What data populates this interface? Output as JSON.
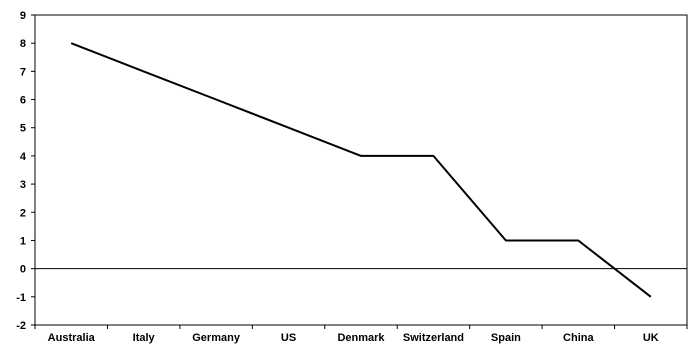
{
  "chart_data": {
    "type": "line",
    "categories": [
      "Australia",
      "Italy",
      "Germany",
      "US",
      "Denmark",
      "Switzerland",
      "Spain",
      "China",
      "UK"
    ],
    "values": [
      8,
      7,
      6,
      5,
      4,
      4,
      1,
      1,
      -1
    ],
    "yticks": [
      "-2",
      "-1",
      "0",
      "1",
      "2",
      "3",
      "4",
      "5",
      "6",
      "7",
      "8",
      "9"
    ],
    "ylim": [
      -2,
      9
    ],
    "zero_line": true,
    "grid": false,
    "line_color": "#000000",
    "title": "",
    "xlabel": "",
    "ylabel": ""
  }
}
